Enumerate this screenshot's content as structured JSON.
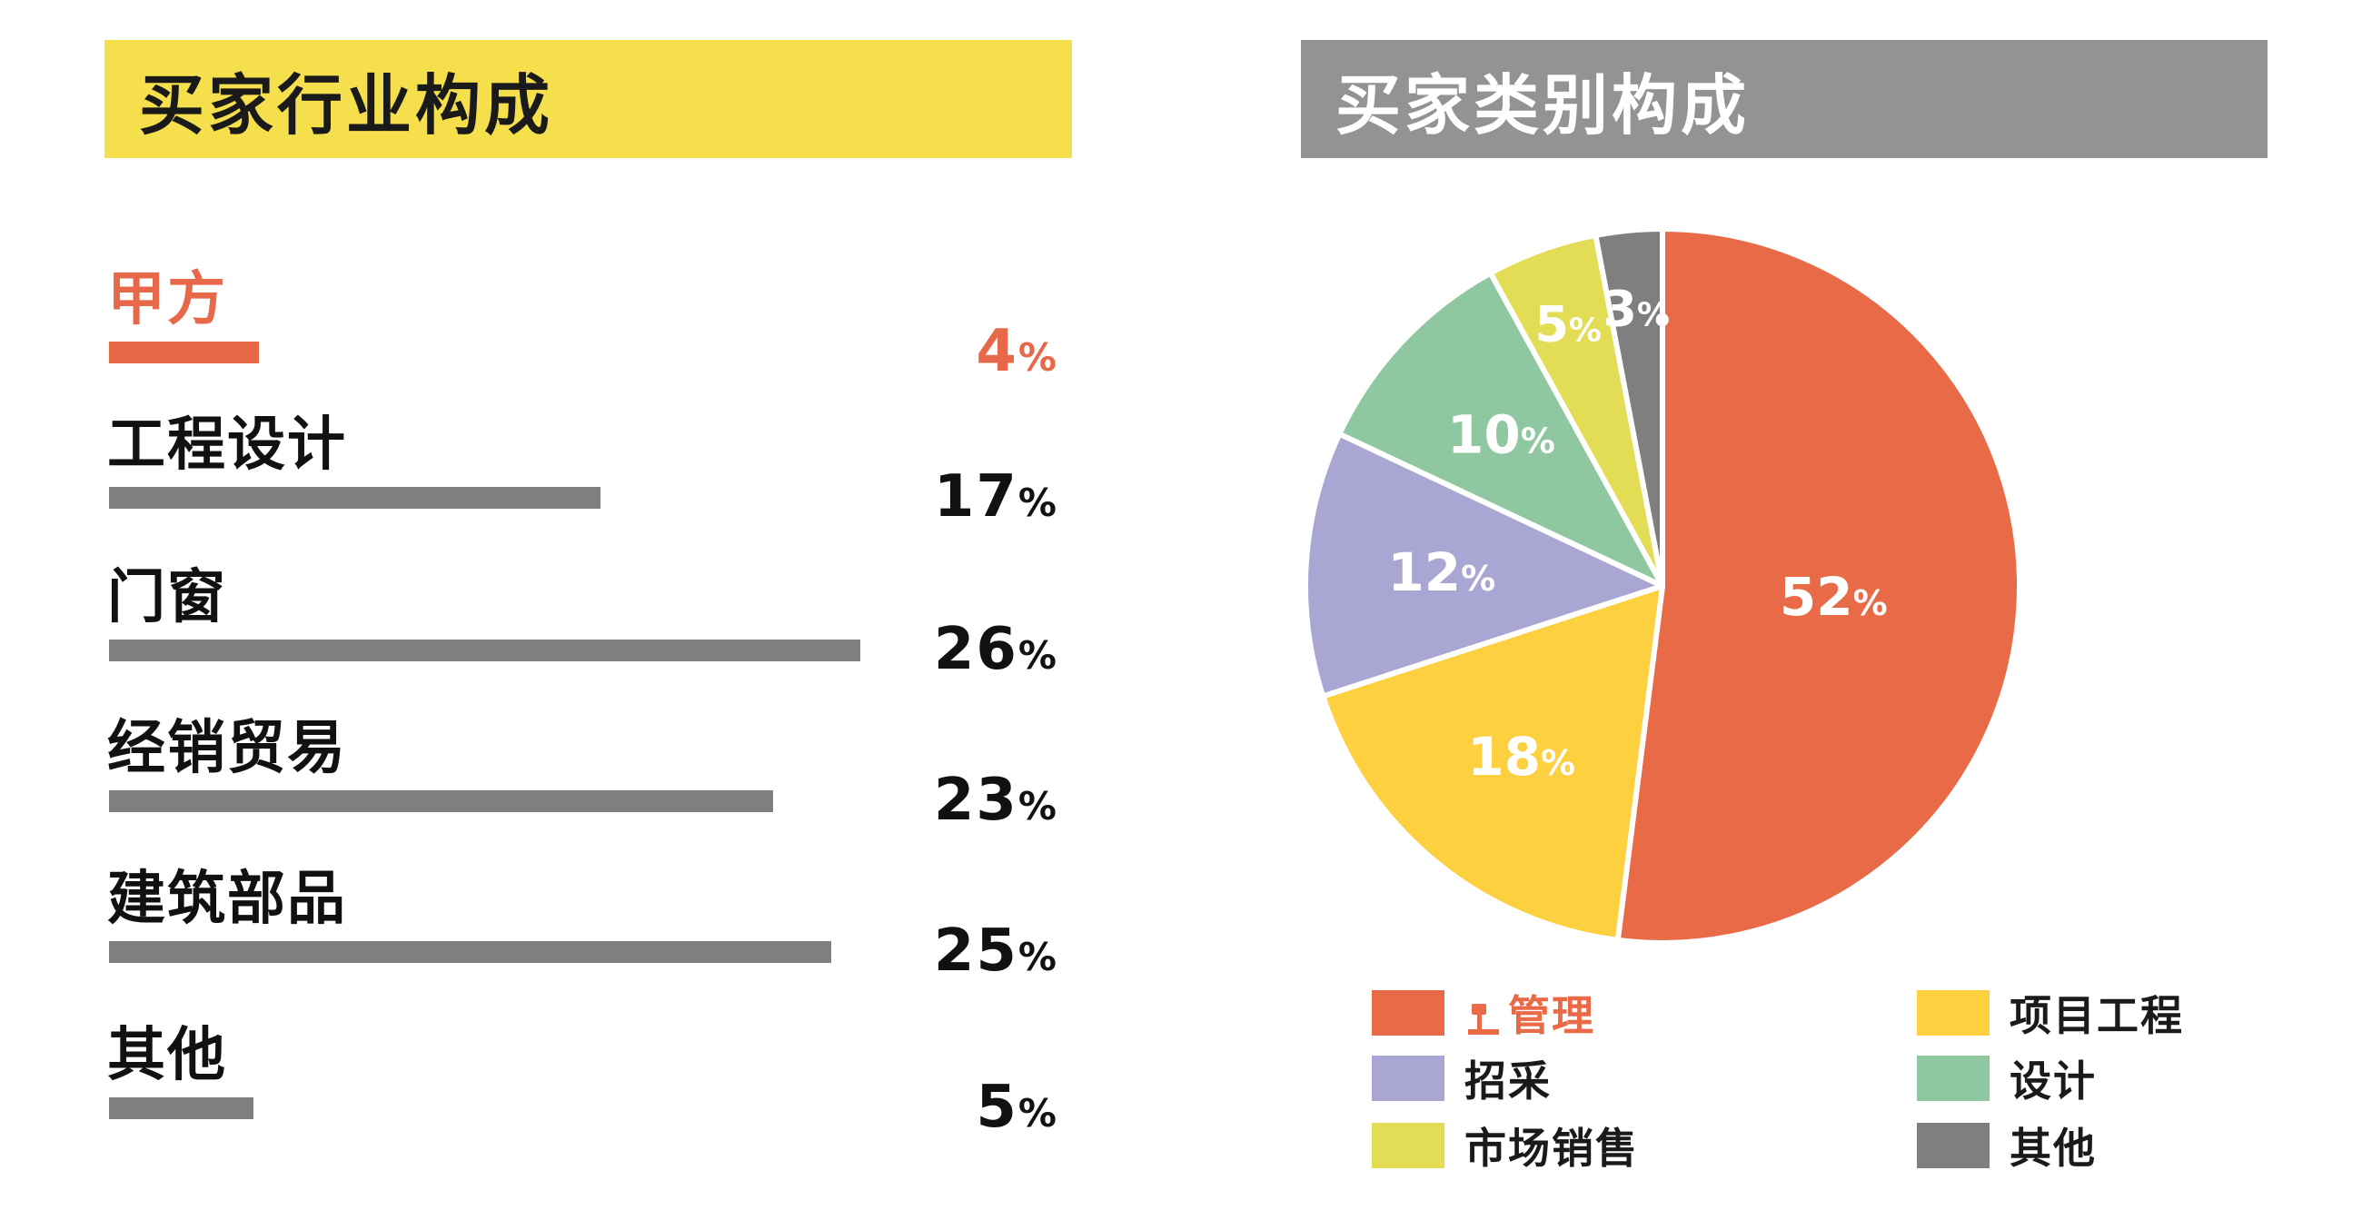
{
  "left_panel": {
    "title": "买家行业构成",
    "accent_color": "#f5df4d",
    "highlight_color": "#e8694a",
    "bar_color": "#7f7f7f"
  },
  "right_panel": {
    "title": "买家类别构成",
    "accent_color": "#939393"
  },
  "chart_data": [
    {
      "type": "bar",
      "orientation": "horizontal",
      "title": "买家行业构成",
      "categories": [
        "甲方",
        "工程设计",
        "门窗",
        "经销贸易",
        "建筑部品",
        "其他"
      ],
      "values": [
        4,
        17,
        26,
        23,
        25,
        5
      ],
      "value_labels": [
        "4",
        "17",
        "26",
        "23",
        "25",
        "5"
      ],
      "unit": "%",
      "highlighted_category": "甲方",
      "grid": false
    },
    {
      "type": "pie",
      "title": "买家类别构成",
      "unit": "%",
      "legend_position": "bottom",
      "slices": [
        {
          "name": "管理",
          "value": 52,
          "label": "52",
          "color": "#e86a47"
        },
        {
          "name": "项目工程",
          "value": 18,
          "label": "18",
          "color": "#fcd03f"
        },
        {
          "name": "招采",
          "value": 12,
          "label": "12",
          "color": "#aaa6d4"
        },
        {
          "name": "设计",
          "value": 10,
          "label": "10",
          "color": "#8fc8a0"
        },
        {
          "name": "市场销售",
          "value": 5,
          "label": "5",
          "color": "#e2dd55"
        },
        {
          "name": "其他",
          "value": 3,
          "label": "3",
          "color": "#7f7f7f"
        }
      ]
    }
  ],
  "legend": [
    {
      "name": "管理",
      "color": "#e86a47",
      "icon": "hammer-icon",
      "text_color": "#e86a47"
    },
    {
      "name": "项目工程",
      "color": "#fcd03f"
    },
    {
      "name": "招采",
      "color": "#aaa6d4"
    },
    {
      "name": "设计",
      "color": "#8fc8a0"
    },
    {
      "name": "市场销售",
      "color": "#e2dd55"
    },
    {
      "name": "其他",
      "color": "#7f7f7f"
    }
  ]
}
